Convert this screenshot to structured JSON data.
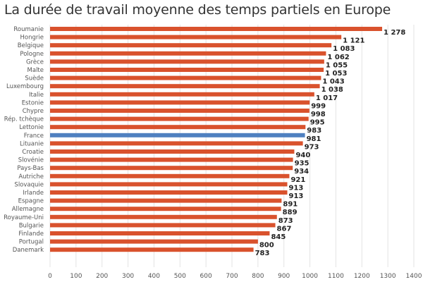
{
  "chart_data": {
    "type": "bar",
    "orientation": "horizontal",
    "title": "La durée de travail moyenne des temps partiels en Europe",
    "xlabel": "",
    "ylabel": "",
    "xlim": [
      0,
      1400
    ],
    "xticks": [
      "0",
      "100",
      "200",
      "300",
      "400",
      "500",
      "600",
      "700",
      "800",
      "900",
      "1000",
      "1100",
      "1200",
      "1300",
      "1400"
    ],
    "grid": "vertical",
    "categories": [
      "Roumanie",
      "Hongrie",
      "Belgique",
      "Pologne",
      "Grèce",
      "Malte",
      "Suède",
      "Luxembourg",
      "Italie",
      "Estonie",
      "Chypre",
      "Rép. tchèque",
      "Lettonie",
      "France",
      "Lituanie",
      "Croatie",
      "Slovénie",
      "Pays-Bas",
      "Autriche",
      "Slovaquie",
      "Irlande",
      "Espagne",
      "Allemagne",
      "Royaume-Uni",
      "Bulgarie",
      "Finlande",
      "Portugal",
      "Danemark"
    ],
    "values": [
      1278,
      1121,
      1083,
      1062,
      1055,
      1053,
      1043,
      1038,
      1017,
      999,
      998,
      995,
      983,
      981,
      973,
      940,
      935,
      934,
      921,
      913,
      913,
      891,
      889,
      873,
      867,
      845,
      800,
      783
    ],
    "value_labels": [
      "1 278",
      "1 121",
      "1 083",
      "1 062",
      "1 055",
      "1 053",
      "1 043",
      "1 038",
      "1 017",
      "999",
      "998",
      "995",
      "983",
      "981",
      "973",
      "940",
      "935",
      "934",
      "921",
      "913",
      "913",
      "891",
      "889",
      "873",
      "867",
      "845",
      "800",
      "783"
    ],
    "highlight": "France",
    "colors": {
      "bar": "#d9522d",
      "highlight": "#4f80c0",
      "grid": "#e3e3e3"
    }
  }
}
